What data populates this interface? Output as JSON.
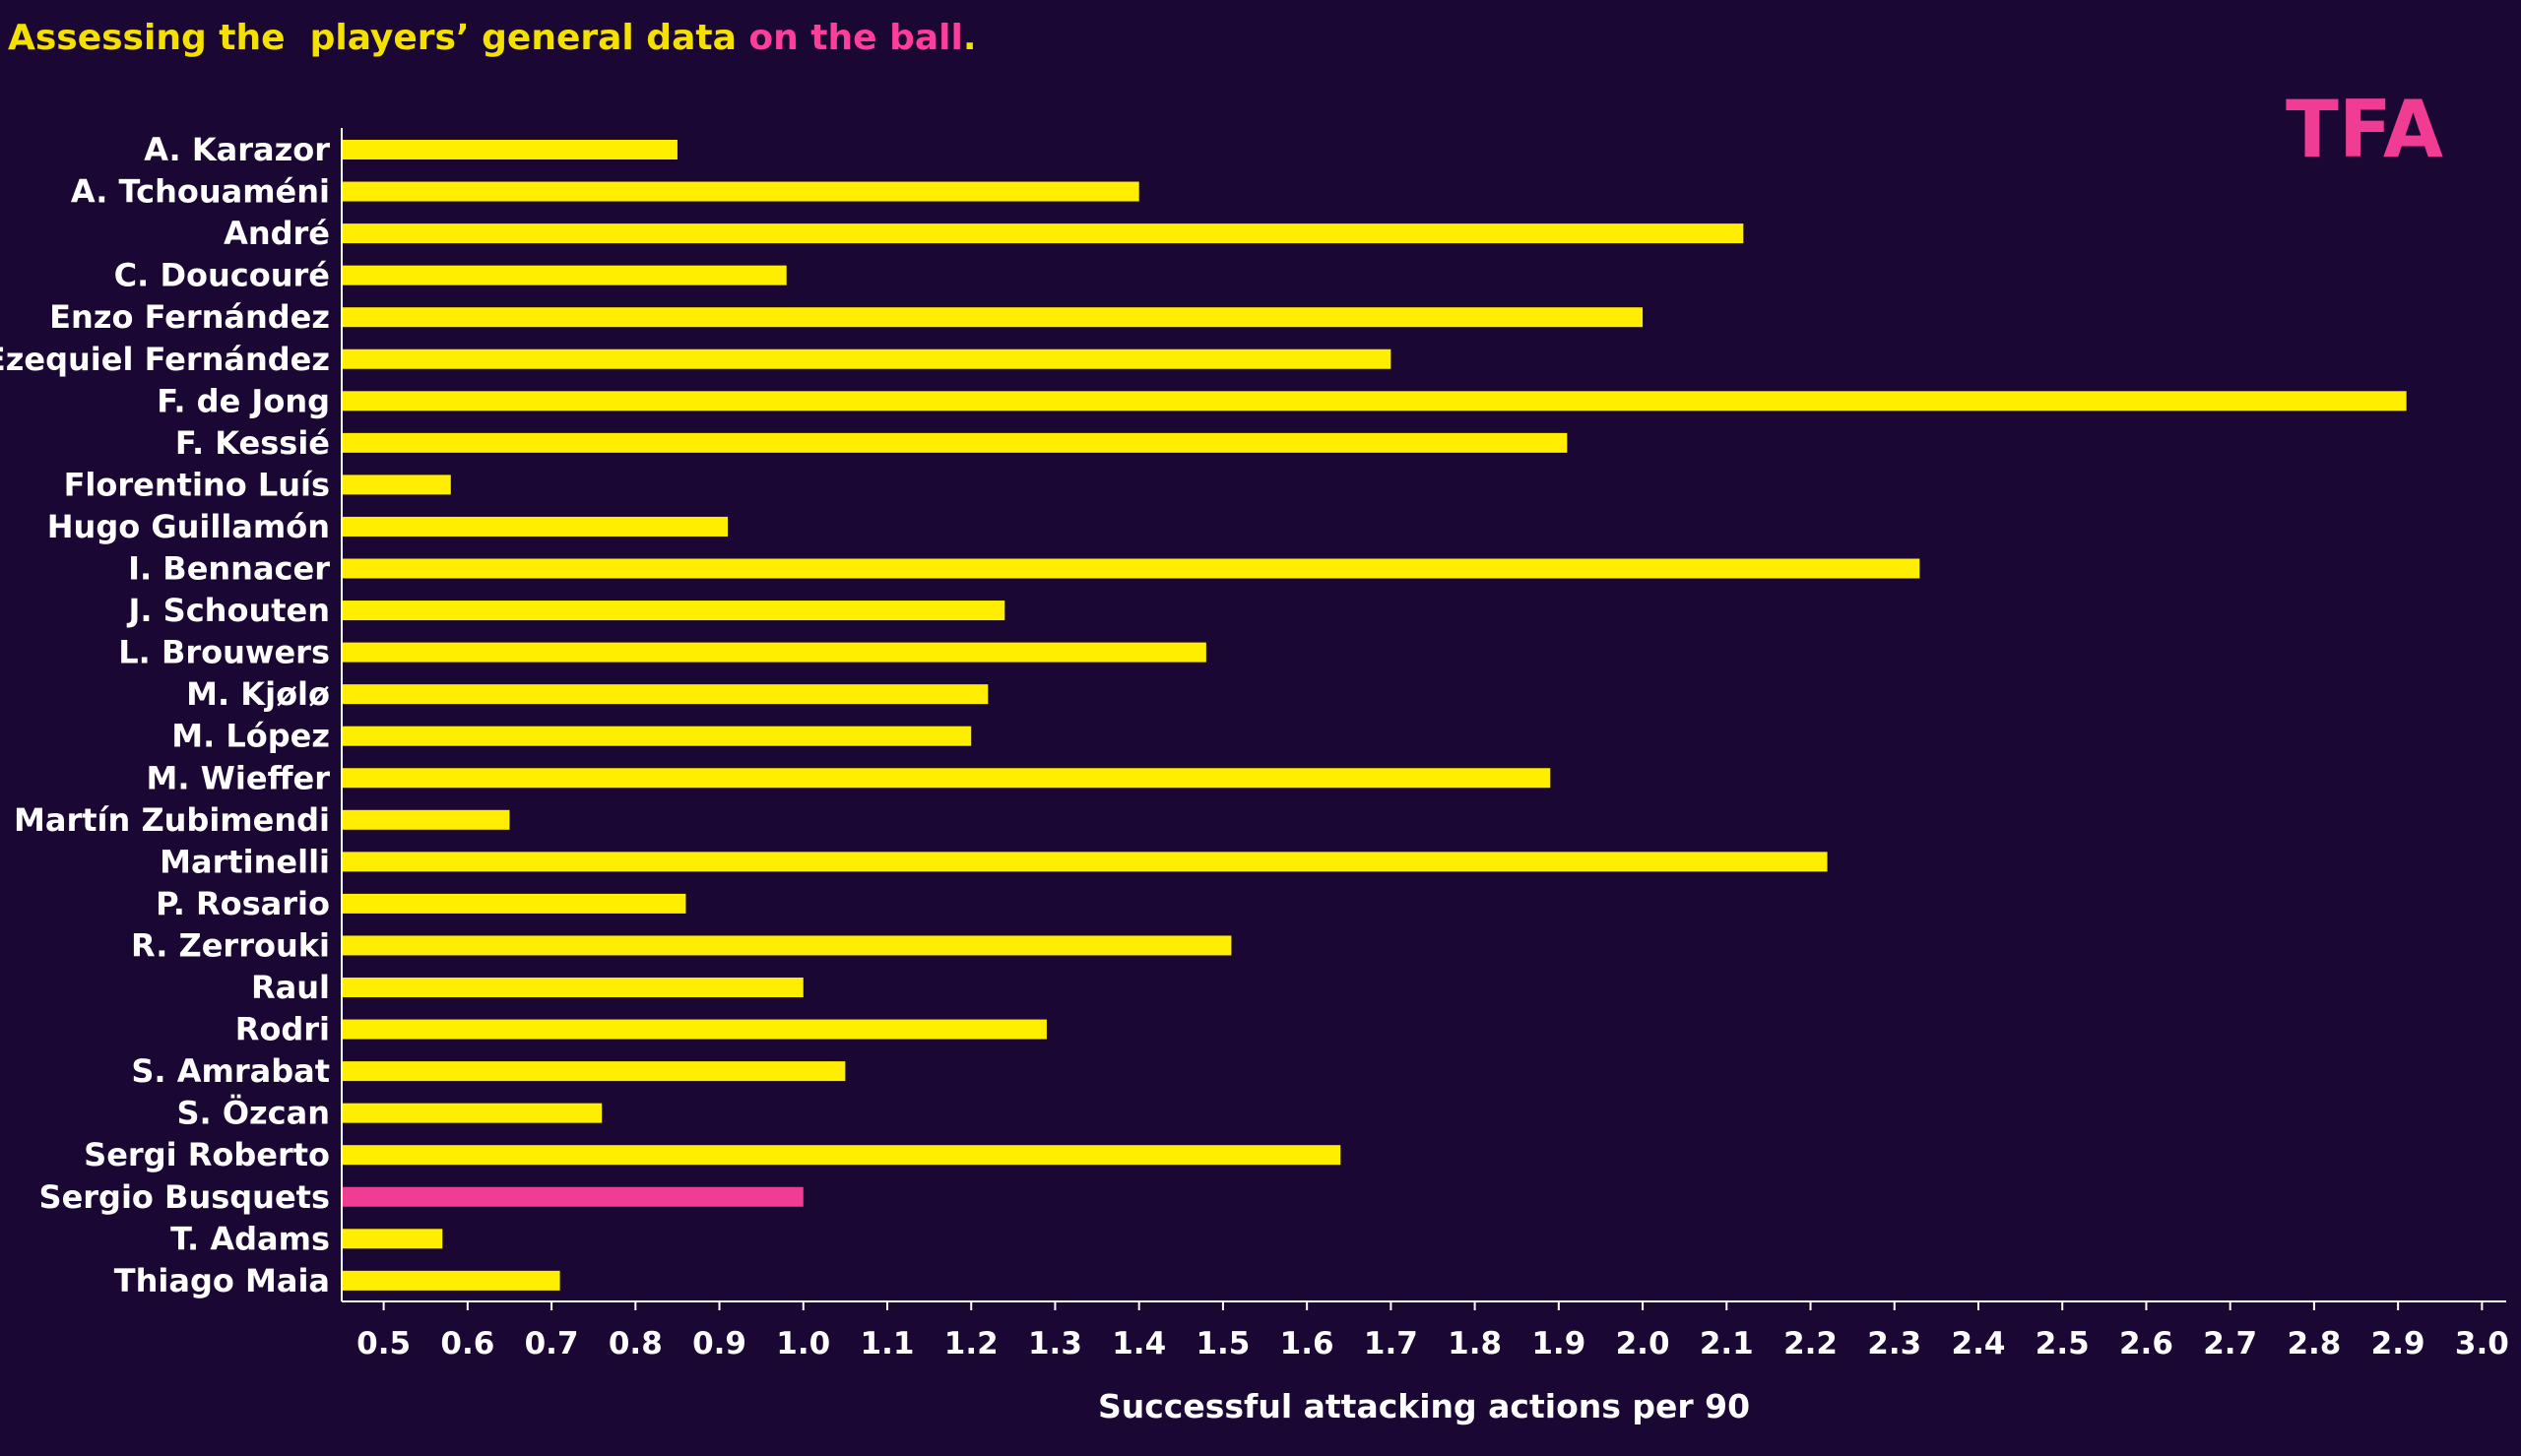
{
  "title": {
    "part1": "Assessing the  players’ general data ",
    "part2": "on the ball",
    "part3": ".",
    "color_main": "#f5e100",
    "color_accent": "#ff3d9a"
  },
  "logo": {
    "text": "TFA",
    "color": "#f03c93"
  },
  "colors": {
    "background": "#1a0733",
    "bar": "#ffee00",
    "highlight": "#f03c93",
    "axis": "#ffffff",
    "text": "#ffffff"
  },
  "chart_data": {
    "type": "bar",
    "orientation": "horizontal",
    "title": "Assessing the  players’ general data on the ball.",
    "xlabel": "Successful attacking actions per 90",
    "ylabel": "",
    "xlim": [
      0.45,
      3.03
    ],
    "xticks": [
      "0.5",
      "0.6",
      "0.7",
      "0.8",
      "0.9",
      "1.0",
      "1.1",
      "1.2",
      "1.3",
      "1.4",
      "1.5",
      "1.6",
      "1.7",
      "1.8",
      "1.9",
      "2.0",
      "2.1",
      "2.2",
      "2.3",
      "2.4",
      "2.5",
      "2.6",
      "2.7",
      "2.8",
      "2.9",
      "3.0"
    ],
    "grid": false,
    "highlighted_category": "Sergio Busquets",
    "categories": [
      "A. Karazor",
      "A. Tchouaméni",
      "André",
      "C. Doucouré",
      "Enzo Fernández",
      "Ezequiel Fernández",
      "F. de Jong",
      "F. Kessié",
      "Florentino Luís",
      "Hugo Guillamón",
      "I. Bennacer",
      "J. Schouten",
      "L. Brouwers",
      "M. Kjølø",
      "M. López",
      "M. Wieffer",
      "Martín Zubimendi",
      "Martinelli",
      "P. Rosario",
      "R. Zerrouki",
      "Raul",
      "Rodri",
      "S. Amrabat",
      "S. Özcan",
      "Sergi Roberto",
      "Sergio Busquets",
      "T. Adams",
      "Thiago Maia"
    ],
    "values": [
      0.85,
      1.4,
      2.12,
      0.98,
      2.0,
      1.7,
      2.91,
      1.91,
      0.58,
      0.91,
      2.33,
      1.24,
      1.48,
      1.22,
      1.2,
      1.89,
      0.65,
      2.22,
      0.86,
      1.51,
      1.0,
      1.29,
      1.05,
      0.76,
      1.64,
      1.0,
      0.57,
      0.71
    ]
  }
}
